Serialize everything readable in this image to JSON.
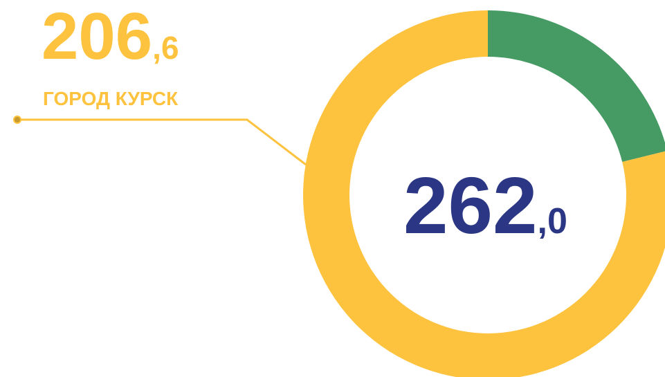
{
  "chart_data": {
    "type": "donut",
    "categories": [
      "ГОРОД КУРСК",
      null
    ],
    "values": [
      206.6,
      55.4
    ],
    "value_labels": [
      "206,6",
      null
    ],
    "colors": [
      "#fdc23e",
      "#469a63"
    ],
    "total": 262.0,
    "total_label": "262,0",
    "total_color": "#2b3784"
  }
}
